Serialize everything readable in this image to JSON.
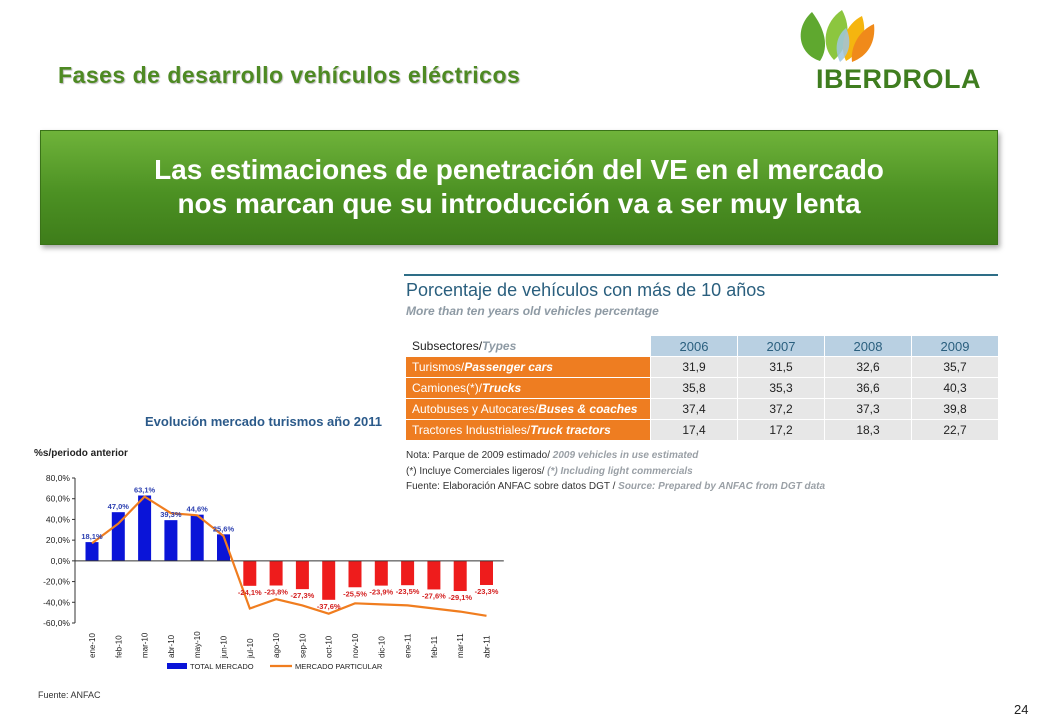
{
  "slide": {
    "title": "Fases de desarrollo vehículos eléctricos",
    "banner_line1": "Las estimaciones de penetración del VE en el mercado",
    "banner_line2": "nos marcan que su introducción va a ser muy lenta",
    "logo_text": "IBERDROLA",
    "source": "Fuente: ANFAC",
    "page_number": "24"
  },
  "table": {
    "title": "Porcentaje de vehículos con más de 10 años",
    "subtitle": "More than ten years old vehicles percentage",
    "header_label_es": "Subsectores/",
    "header_label_en": "Types",
    "years": [
      "2006",
      "2007",
      "2008",
      "2009"
    ],
    "rows": [
      {
        "es": "Turismos/",
        "en": "Passenger cars",
        "values": [
          "31,9",
          "31,5",
          "32,6",
          "35,7"
        ]
      },
      {
        "es": "Camiones(*)/",
        "en": "Trucks",
        "values": [
          "35,8",
          "35,3",
          "36,6",
          "40,3"
        ]
      },
      {
        "es": "Autobuses y Autocares/",
        "en": "Buses & coaches",
        "values": [
          "37,4",
          "37,2",
          "37,3",
          "39,8"
        ]
      },
      {
        "es": "Tractores Industriales/",
        "en": "Truck tractors",
        "values": [
          "17,4",
          "17,2",
          "18,3",
          "22,7"
        ]
      }
    ],
    "note1_es": "Nota: Parque de 2009 estimado/",
    "note1_en": "2009 vehicles in use estimated",
    "note2_es": "(*) Incluye Comerciales ligeros/",
    "note2_en": "(*) Including light commercials",
    "note3_es": "Fuente: Elaboración ANFAC sobre datos DGT /",
    "note3_en": "Source: Prepared by ANFAC from DGT data"
  },
  "chart_data": {
    "type": "bar",
    "title": "Evolución mercado turismos año 2011",
    "ylabel": "%s/periodo anterior",
    "xlabel": "",
    "categories": [
      "ene-10",
      "feb-10",
      "mar-10",
      "abr-10",
      "may-10",
      "jun-10",
      "jul-10",
      "ago-10",
      "sep-10",
      "oct-10",
      "nov-10",
      "dic-10",
      "ene-11",
      "feb-11",
      "mar-11",
      "abr-11"
    ],
    "series": [
      {
        "name": "TOTAL MERCADO",
        "kind": "bar",
        "values": [
          18.1,
          47.0,
          63.1,
          39.3,
          44.6,
          25.6,
          -24.1,
          -23.8,
          -27.3,
          -37.6,
          -25.5,
          -23.9,
          -23.5,
          -27.6,
          -29.1,
          -23.3
        ],
        "labels": [
          "18,1%",
          "47,0%",
          "63,1%",
          "39,3%",
          "44,6%",
          "25,6%",
          "-24,1%",
          "-23,8%",
          "-27,3%",
          "-37,6%",
          "-25,5%",
          "-23,9%",
          "-23,5%",
          "-27,6%",
          "-29,1%",
          "-23,3%"
        ]
      },
      {
        "name": "MERCADO PARTICULAR",
        "kind": "line",
        "values": [
          17,
          36,
          62,
          46,
          44,
          24,
          -46,
          -37,
          -43,
          -51,
          -41,
          -42,
          -43,
          -46,
          -49,
          -53
        ]
      }
    ],
    "yticks": [
      "80,0%",
      "60,0%",
      "40,0%",
      "20,0%",
      "0,0%",
      "-20,0%",
      "-40,0%",
      "-60,0%"
    ],
    "ylim": [
      -60,
      80
    ],
    "grid": false,
    "legend": "bottom",
    "colors": {
      "positive": "#0a14d8",
      "negative": "#ee1c1c",
      "line": "#f07d1f",
      "pos_label": "#2b3fb0",
      "neg_label": "#d42020"
    }
  }
}
